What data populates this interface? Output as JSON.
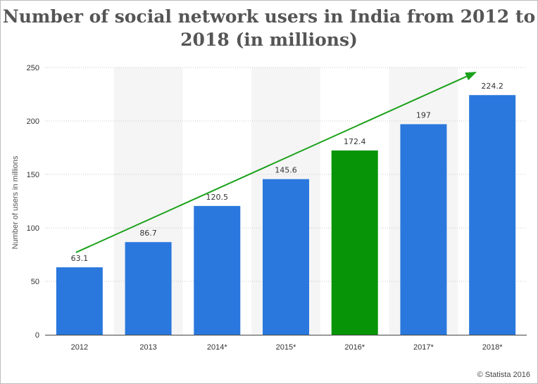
{
  "chart_data": {
    "type": "bar",
    "title": "Number of social network users in India from 2012 to 2018 (in millions)",
    "ylabel": "Number of users in millions",
    "xlabel": "",
    "categories": [
      "2012",
      "2013",
      "2014*",
      "2015*",
      "2016*",
      "2017*",
      "2018*"
    ],
    "values": [
      63.1,
      86.7,
      120.5,
      145.6,
      172.4,
      197,
      224.2
    ],
    "value_labels": [
      "63.1",
      "86.7",
      "120.5",
      "145.6",
      "172.4",
      "197",
      "224.2"
    ],
    "ylim": [
      0,
      250
    ],
    "yticks": [
      0,
      50,
      100,
      150,
      200,
      250
    ],
    "grid": true,
    "highlight_category": "2016*",
    "trend_arrow": {
      "from_value": 77,
      "to_value": 246,
      "from_category": "2012",
      "to_category": "2018*"
    }
  },
  "colors": {
    "bar": "#2a78dd",
    "highlight_bar": "#079406",
    "arrow": "#1aa11a",
    "band": "#f5f5f5",
    "grid": "#c8c8c8"
  },
  "credit": "© Statista 2016"
}
